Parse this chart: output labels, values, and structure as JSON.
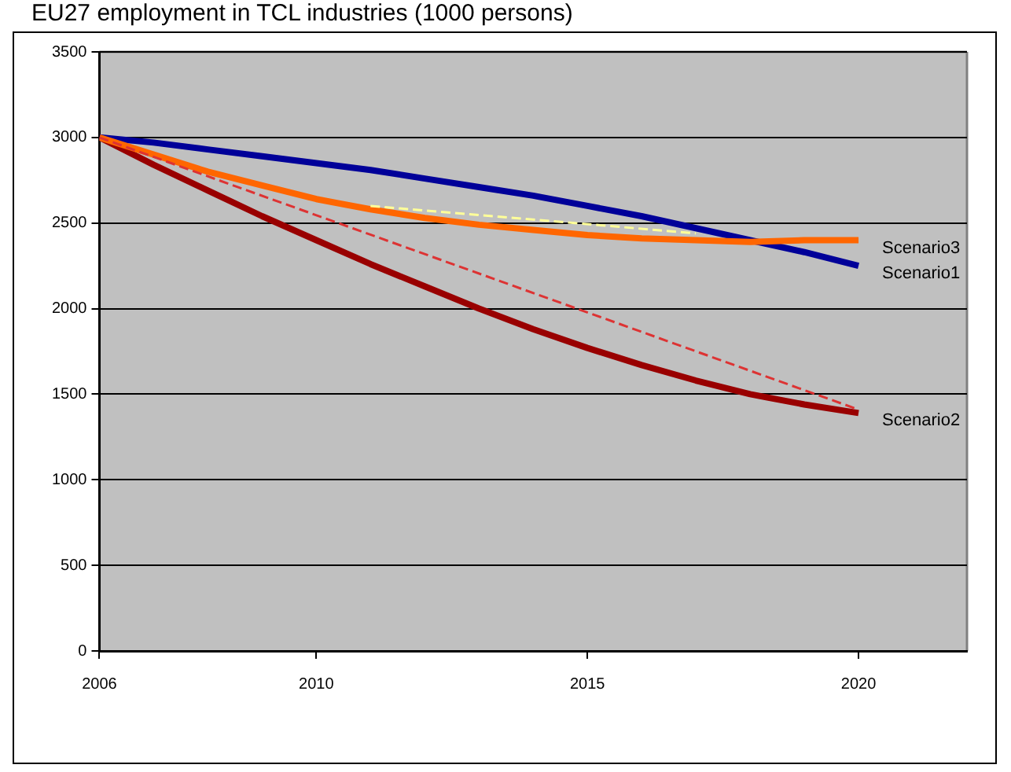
{
  "chart_data": {
    "type": "line",
    "title": "EU27 employment in TCL industries (1000 persons)",
    "x": [
      2006,
      2007,
      2008,
      2009,
      2010,
      2011,
      2012,
      2013,
      2014,
      2015,
      2016,
      2017,
      2018,
      2019,
      2020
    ],
    "series": [
      {
        "name": "Scenario3",
        "color": "#ff6600",
        "values": [
          3000,
          2900,
          2800,
          2720,
          2640,
          2580,
          2530,
          2490,
          2460,
          2430,
          2410,
          2400,
          2390,
          2400,
          2400
        ]
      },
      {
        "name": "Scenario1",
        "color": "#000099",
        "values": [
          3000,
          2970,
          2930,
          2890,
          2850,
          2810,
          2760,
          2710,
          2660,
          2600,
          2540,
          2470,
          2400,
          2330,
          2250
        ]
      },
      {
        "name": "Scenario2",
        "color": "#990000",
        "values": [
          3000,
          2840,
          2690,
          2540,
          2400,
          2260,
          2130,
          2000,
          1880,
          1770,
          1670,
          1580,
          1500,
          1440,
          1390
        ]
      },
      {
        "type": "line",
        "color": "#ffff99",
        "line_style": "dashed",
        "x": [
          2011,
          2017
        ],
        "values": [
          2600,
          2440
        ]
      },
      {
        "type": "line",
        "color": "#dd3333",
        "line_style": "dashed",
        "x": [
          2006,
          2020
        ],
        "values": [
          3000,
          1410
        ]
      }
    ],
    "xlim": [
      2006,
      2022
    ],
    "xticks": [
      2006,
      2010,
      2015,
      2020
    ],
    "ylim": [
      0,
      3500
    ],
    "yticks": [
      0,
      500,
      1000,
      1500,
      2000,
      2500,
      3000,
      3500
    ],
    "grid": "y",
    "legend": false,
    "marker": "none",
    "line_style": "solid"
  }
}
